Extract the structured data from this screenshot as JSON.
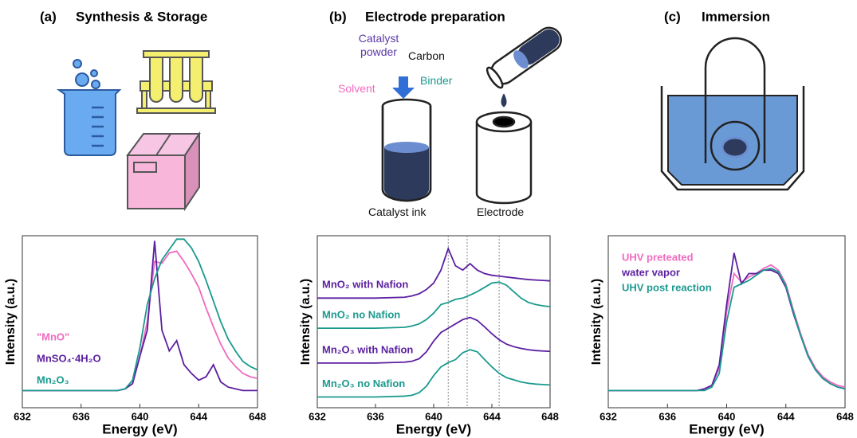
{
  "panels": [
    {
      "label": "(a)",
      "title": "Synthesis & Storage"
    },
    {
      "label": "(b)",
      "title": "Electrode preparation"
    },
    {
      "label": "(c)",
      "title": "Immersion"
    }
  ],
  "diagram_labels": {
    "catalyst_powder": "Catalyst powder",
    "carbon": "Carbon",
    "solvent": "Solvent",
    "binder": "Binder",
    "catalyst_ink": "Catalyst ink",
    "electrode": "Electrode"
  },
  "chart_data": [
    {
      "type": "line",
      "x_label": "Energy (eV)",
      "y_label": "Intensity (a.u.)",
      "x": [
        632,
        636,
        638,
        638.5,
        639,
        639.5,
        640,
        640.5,
        641,
        641.5,
        642,
        642.5,
        643,
        643.5,
        644,
        644.5,
        645,
        645.5,
        646,
        646.5,
        647,
        647.5,
        648
      ],
      "xlim": [
        632,
        648
      ],
      "xticks": [
        632,
        636,
        640,
        644,
        648
      ],
      "ylim": [
        0,
        1
      ],
      "legend": "lower left",
      "series": [
        {
          "name": "\"MnO\"",
          "color": "#f06ac0",
          "values": [
            0.1,
            0.1,
            0.1,
            0.1,
            0.11,
            0.14,
            0.3,
            0.5,
            0.85,
            0.84,
            0.9,
            0.91,
            0.85,
            0.78,
            0.7,
            0.58,
            0.47,
            0.37,
            0.29,
            0.24,
            0.2,
            0.18,
            0.17
          ]
        },
        {
          "name": "MnSO₄·4H₂O",
          "color": "#5b1fa0",
          "values": [
            0.1,
            0.1,
            0.1,
            0.1,
            0.11,
            0.14,
            0.3,
            0.45,
            0.97,
            0.45,
            0.33,
            0.39,
            0.25,
            0.2,
            0.16,
            0.18,
            0.25,
            0.15,
            0.12,
            0.11,
            0.1,
            0.1,
            0.1
          ]
        },
        {
          "name": "Mn₂O₃",
          "color": "#1a9a8e",
          "values": [
            0.1,
            0.1,
            0.1,
            0.1,
            0.11,
            0.16,
            0.35,
            0.6,
            0.75,
            0.86,
            0.92,
            0.98,
            0.98,
            0.93,
            0.85,
            0.74,
            0.62,
            0.5,
            0.4,
            0.33,
            0.27,
            0.24,
            0.22
          ]
        }
      ]
    },
    {
      "type": "line",
      "x_label": "Energy (eV)",
      "y_label": "Intensity (a.u.)",
      "x": [
        632,
        636,
        638,
        638.5,
        639,
        639.5,
        640,
        640.5,
        641,
        641.5,
        642,
        642.5,
        643,
        643.5,
        644,
        644.5,
        645,
        645.5,
        646,
        646.5,
        647,
        647.5,
        648
      ],
      "xlim": [
        632,
        648
      ],
      "xticks": [
        632,
        636,
        640,
        644,
        648
      ],
      "ylim": [
        0,
        4
      ],
      "legend": "inline",
      "reference_lines": [
        641,
        642.3,
        644.5
      ],
      "series": [
        {
          "name": "MnO₂ with Nafion",
          "color": "#5b1fa0",
          "values": [
            2.55,
            2.55,
            2.57,
            2.6,
            2.65,
            2.75,
            2.9,
            3.2,
            3.7,
            3.3,
            3.2,
            3.35,
            3.2,
            3.12,
            3.08,
            3.06,
            3.04,
            3.02,
            3.0,
            2.98,
            2.97,
            2.96,
            2.95
          ]
        },
        {
          "name": "MnO₂ no Nafion",
          "color": "#1a9a8e",
          "values": [
            1.85,
            1.85,
            1.87,
            1.9,
            1.95,
            2.05,
            2.2,
            2.4,
            2.45,
            2.52,
            2.55,
            2.62,
            2.7,
            2.8,
            2.9,
            2.92,
            2.85,
            2.7,
            2.55,
            2.45,
            2.4,
            2.37,
            2.35
          ]
        },
        {
          "name": "Mn₂O₃ with Nafion",
          "color": "#5b1fa0",
          "values": [
            1.04,
            1.04,
            1.06,
            1.08,
            1.14,
            1.3,
            1.55,
            1.75,
            1.85,
            1.95,
            2.05,
            2.1,
            2.03,
            1.88,
            1.72,
            1.58,
            1.48,
            1.42,
            1.38,
            1.35,
            1.33,
            1.32,
            1.31
          ]
        },
        {
          "name": "Mn₂O₃ no Nafion",
          "color": "#1a9a8e",
          "values": [
            0.25,
            0.25,
            0.27,
            0.29,
            0.35,
            0.5,
            0.75,
            0.95,
            1.05,
            1.12,
            1.28,
            1.35,
            1.3,
            1.12,
            0.95,
            0.8,
            0.7,
            0.65,
            0.6,
            0.57,
            0.55,
            0.54,
            0.53
          ]
        }
      ]
    },
    {
      "type": "line",
      "x_label": "Energy (eV)",
      "y_label": "Intensity (a.u.)",
      "x": [
        632,
        636,
        638,
        638.5,
        639,
        639.5,
        640,
        640.5,
        641,
        641.5,
        642,
        642.5,
        643,
        643.5,
        644,
        644.5,
        645,
        645.5,
        646,
        646.5,
        647,
        647.5,
        648
      ],
      "xlim": [
        632,
        648
      ],
      "xticks": [
        632,
        636,
        640,
        644,
        648
      ],
      "ylim": [
        0,
        1
      ],
      "legend": "upper left",
      "series": [
        {
          "name": "UHV preteated",
          "color": "#f06ac0",
          "values": [
            0.1,
            0.1,
            0.1,
            0.11,
            0.13,
            0.23,
            0.56,
            0.78,
            0.73,
            0.76,
            0.78,
            0.81,
            0.83,
            0.8,
            0.72,
            0.57,
            0.43,
            0.31,
            0.23,
            0.18,
            0.15,
            0.13,
            0.12
          ]
        },
        {
          "name": "water vapor",
          "color": "#5b1fa0",
          "values": [
            0.1,
            0.1,
            0.1,
            0.11,
            0.13,
            0.25,
            0.6,
            0.9,
            0.72,
            0.78,
            0.78,
            0.8,
            0.8,
            0.78,
            0.7,
            0.55,
            0.42,
            0.3,
            0.22,
            0.17,
            0.14,
            0.12,
            0.11
          ]
        },
        {
          "name": "UHV post reaction",
          "color": "#1a9a8e",
          "values": [
            0.1,
            0.1,
            0.1,
            0.1,
            0.12,
            0.2,
            0.5,
            0.7,
            0.72,
            0.74,
            0.77,
            0.8,
            0.81,
            0.79,
            0.71,
            0.56,
            0.42,
            0.3,
            0.22,
            0.17,
            0.14,
            0.12,
            0.11
          ]
        }
      ]
    }
  ]
}
